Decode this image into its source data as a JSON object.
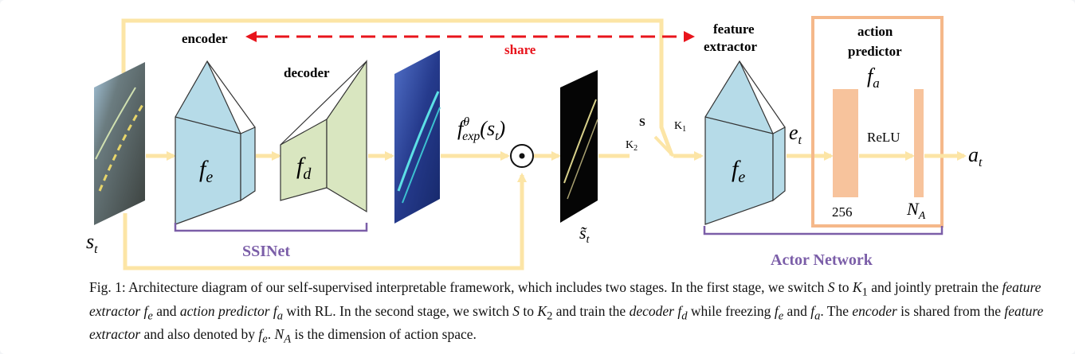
{
  "labels": {
    "encoder": "encoder",
    "decoder": "decoder",
    "share": "share",
    "feature_extractor_1": "feature",
    "feature_extractor_2": "extractor",
    "action_predictor_1": "action",
    "action_predictor_2": "predictor",
    "f_a": "f",
    "f_a_sub": "a",
    "f_e": "f",
    "f_e_sub": "e",
    "f_d": "f",
    "f_d_sub": "d",
    "s_t": "s",
    "s_t_sub": "t",
    "s_tilde_t": "s̃",
    "s_tilde_t_sub": "t",
    "f_exp": "f",
    "f_exp_sup": "θ",
    "f_exp_sub": "exp",
    "f_exp_arg": "(s",
    "f_exp_arg_sub": "t",
    "f_exp_close": ")",
    "switch_s": "S",
    "switch_k1": "K",
    "switch_k1_sub": "1",
    "switch_k2": "K",
    "switch_k2_sub": "2",
    "e_t": "e",
    "e_t_sub": "t",
    "relu": "ReLU",
    "a_t": "a",
    "a_t_sub": "t",
    "dim_256": "256",
    "n_a": "N",
    "n_a_sub": "A",
    "ssinet": "SSINet",
    "actor_network": "Actor Network"
  },
  "colors": {
    "arrow": "#fce5a6",
    "share": "#e8141c",
    "encoder_fill": "#b6dbe8",
    "decoder_fill": "#d9e6c0",
    "brace": "#7b5ea8",
    "box": "#f5b88a",
    "bar": "#f7c39c"
  },
  "caption": {
    "l1_a": "Fig. 1: Architecture diagram of our self-supervised interpretable framework, which includes two stages. In the first stage, we switch ",
    "l1_b": "S",
    "l1_c": " to ",
    "l1_d": "K",
    "l1_d_sub": "1",
    "l2_a": " and jointly pretrain the ",
    "l2_b": "feature extractor f",
    "l2_b_sub": "e",
    "l2_c": " and ",
    "l2_d": "action predictor f",
    "l2_d_sub": "a",
    "l2_e": " with RL. In the second stage, we switch ",
    "l2_f": "S",
    "l2_g": " to ",
    "l2_h": "K",
    "l2_h_sub": "2",
    "l2_i": " and train the ",
    "l2_j": "decoder f",
    "l2_j_sub": "d",
    "l3_a": " while freezing ",
    "l3_b": "f",
    "l3_b_sub": "e",
    "l3_c": " and ",
    "l3_d": "f",
    "l3_d_sub": "a",
    "l3_e": ". The ",
    "l3_f": "encoder",
    "l3_g": " is shared from the ",
    "l3_h": "feature extractor",
    "l3_i": " and also denoted by ",
    "l3_j": "f",
    "l3_j_sub": "e",
    "l3_k": ". ",
    "l3_l": "N",
    "l3_l_sub": "A",
    "l3_m": " is the dimension of action space."
  }
}
